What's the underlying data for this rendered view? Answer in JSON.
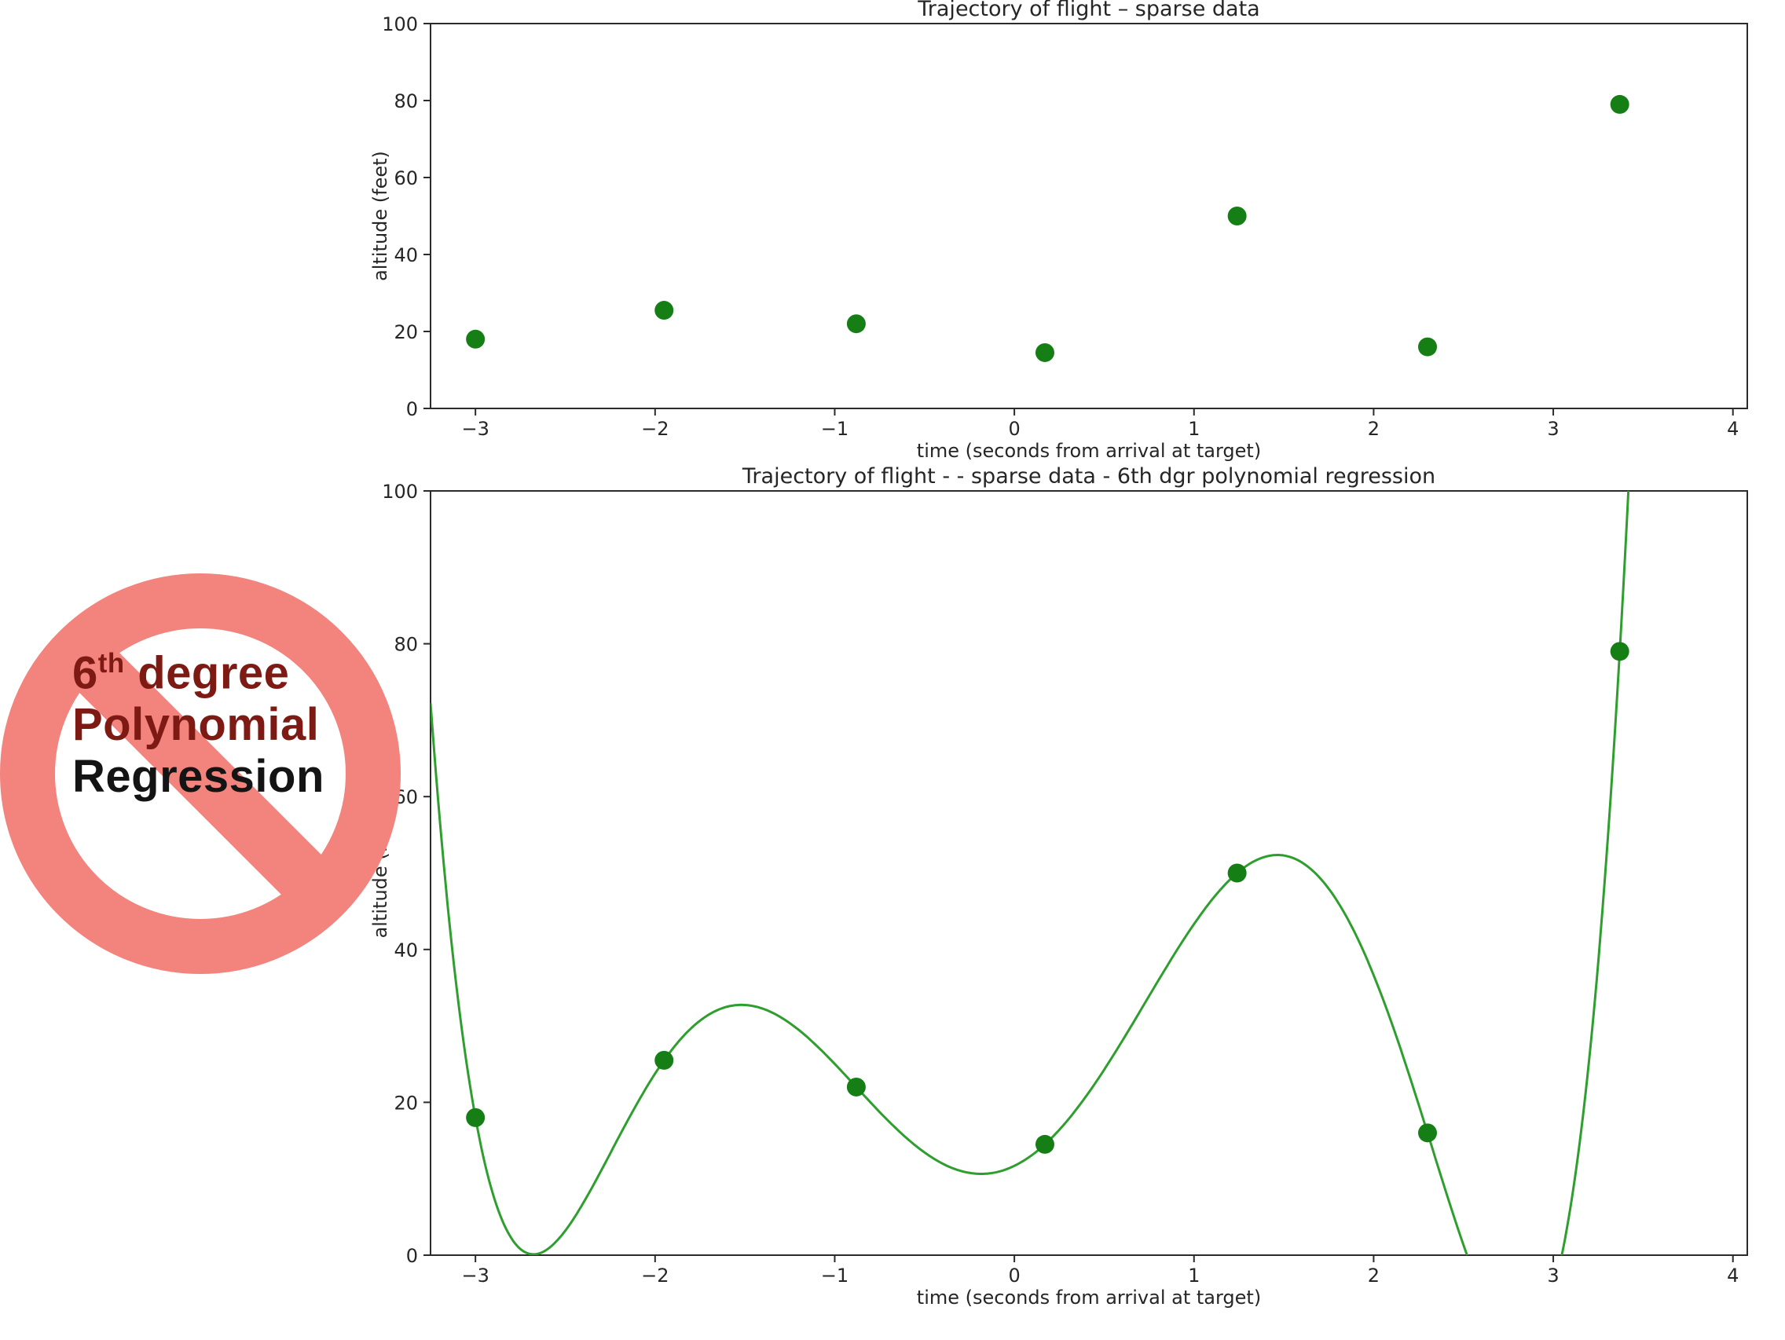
{
  "page": {
    "background": "#ffffff"
  },
  "ban": {
    "line1_start": "6",
    "line1_sup": "th",
    "line1_end": " degree",
    "line2": "Polynomial",
    "line3": "Regression",
    "symbol_color": "#f2837d",
    "line1_color": "#7e1a14",
    "line2_color": "#7e1a14",
    "line3_color": "#141414"
  },
  "chart_data": [
    {
      "type": "scatter",
      "title": "Trajectory of flight  –  sparse data",
      "xlabel": "time (seconds from arrival at target)",
      "ylabel": "altitude (feet)",
      "xlim": [
        -3.25,
        4.08
      ],
      "ylim": [
        0,
        100
      ],
      "xticks": [
        -3,
        -2,
        -1,
        0,
        1,
        2,
        3,
        4
      ],
      "yticks": [
        0,
        20,
        40,
        60,
        80,
        100
      ],
      "x": [
        -3.0,
        -1.95,
        -0.88,
        0.17,
        1.24,
        2.3,
        3.37
      ],
      "y": [
        18,
        25.5,
        22,
        14.5,
        50,
        16,
        79
      ],
      "marker_color": "#157f15",
      "grid": false,
      "legend_position": "none"
    },
    {
      "type": "scatter",
      "title": "Trajectory of flight -  - sparse data - 6th dgr polynomial regression",
      "xlabel": "time (seconds from arrival at target)",
      "ylabel": "altitude (feet)",
      "xlim": [
        -3.25,
        4.08
      ],
      "ylim": [
        0,
        100
      ],
      "xticks": [
        -3,
        -2,
        -1,
        0,
        1,
        2,
        3,
        4
      ],
      "yticks": [
        0,
        20,
        40,
        60,
        80,
        100
      ],
      "x": [
        -3.0,
        -1.95,
        -0.88,
        0.17,
        1.24,
        2.3,
        3.37
      ],
      "y": [
        18,
        25.5,
        22,
        14.5,
        50,
        16,
        79
      ],
      "marker_color": "#157f15",
      "fit": {
        "type": "polynomial",
        "degree": 6,
        "line_color": "#2e9e2e"
      },
      "grid": false,
      "legend_position": "none"
    }
  ]
}
